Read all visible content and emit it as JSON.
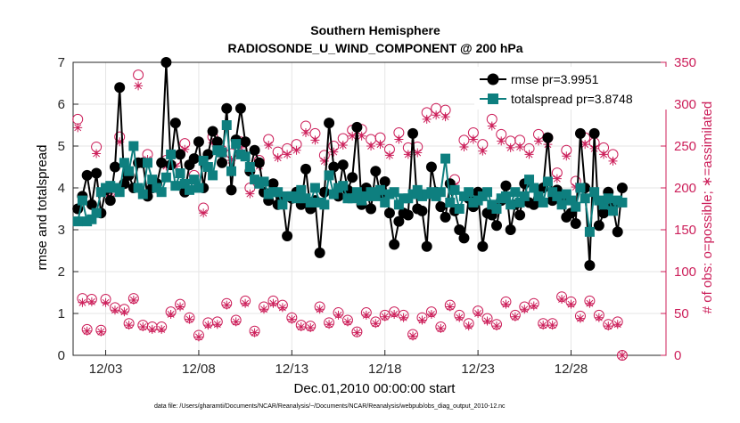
{
  "colors": {
    "rmse": "#000000",
    "totalspread": "#0e7f7f",
    "counts": "#cc1f5a",
    "axis": "#262626",
    "grid": "#e6e6e6"
  },
  "chart_data": {
    "type": "line",
    "title": "Southern Hemisphere",
    "subtitle": "RADIOSONDE_U_WIND_COMPONENT @ 200 hPa",
    "xlabel": "Dec.01,2010 00:00:00 start",
    "ylabel_left": "rmse and totalspread",
    "ylabel_right": "# of obs: o=possible; ∗=assimilated",
    "footnote": "data file: /Users/gharamti/Documents/NCAR/Reanalysis/~/Documents/NCAR/Reanalysis/webpub/obs_diag_output_2010-12.nc",
    "x_ticks": [
      {
        "day": 3,
        "label": "12/03"
      },
      {
        "day": 8,
        "label": "12/08"
      },
      {
        "day": 13,
        "label": "12/13"
      },
      {
        "day": 18,
        "label": "12/18"
      },
      {
        "day": 23,
        "label": "12/23"
      },
      {
        "day": 28,
        "label": "12/28"
      }
    ],
    "xlim": [
      1.25,
      33.1
    ],
    "ylim_left": [
      0,
      7
    ],
    "ylim_right": [
      0,
      350
    ],
    "y_left_ticks": [
      "0",
      "1",
      "2",
      "3",
      "4",
      "5",
      "6",
      "7"
    ],
    "y_right_ticks": [
      "0",
      "50",
      "100",
      "150",
      "200",
      "250",
      "300",
      "350"
    ],
    "legend_position": "top-right",
    "x_start": 1.5,
    "x_step": 0.25,
    "series": [
      {
        "name": "rmse",
        "legend_label": "rmse pr=3.9951",
        "marker": "circle",
        "values": [
          3.5,
          3.8,
          4.3,
          3.6,
          4.35,
          3.4,
          3.95,
          3.7,
          4.5,
          6.4,
          4.1,
          4.3,
          4.0,
          4.6,
          4.6,
          3.8,
          4.0,
          4.1,
          4.6,
          7.0,
          4.55,
          5.55,
          4.8,
          3.9,
          4.55,
          4.7,
          5.1,
          4.0,
          4.8,
          5.35,
          5.1,
          4.6,
          5.9,
          3.95,
          5.15,
          5.9,
          5.1,
          4.4,
          4.9,
          4.6,
          3.9,
          3.7,
          4.1,
          3.6,
          3.75,
          2.85,
          3.75,
          3.9,
          3.6,
          4.45,
          3.5,
          3.7,
          2.45,
          3.9,
          5.55,
          4.5,
          3.8,
          4.55,
          3.95,
          4.25,
          5.45,
          3.6,
          4.0,
          3.5,
          4.4,
          3.85,
          4.15,
          3.4,
          2.65,
          3.2,
          3.4,
          3.35,
          5.3,
          3.5,
          3.45,
          2.6,
          4.5,
          3.9,
          3.55,
          3.3,
          4.1,
          3.45,
          3.0,
          2.8,
          3.75,
          3.55,
          3.9,
          2.6,
          3.4,
          3.35,
          3.1,
          3.7,
          4.05,
          3.0,
          3.6,
          3.35,
          4.1,
          3.65,
          3.6,
          3.75,
          4.0,
          5.2,
          3.7,
          3.95,
          3.7,
          3.3,
          3.4,
          3.15,
          5.3,
          4.0,
          2.15,
          5.3,
          3.1,
          3.4,
          3.9,
          3.55,
          2.95,
          4.0
        ]
      },
      {
        "name": "totalspread",
        "legend_label": "totalspread pr=3.8748",
        "marker": "square",
        "values": [
          3.2,
          3.7,
          3.2,
          3.25,
          3.4,
          3.9,
          4.0,
          4.05,
          4.0,
          3.9,
          4.6,
          4.4,
          5.0,
          4.0,
          3.85,
          4.6,
          4.2,
          4.0,
          3.9,
          4.25,
          4.8,
          4.05,
          4.35,
          4.1,
          3.95,
          4.2,
          4.0,
          4.65,
          4.5,
          4.3,
          4.9,
          4.85,
          5.5,
          4.4,
          5.05,
          4.8,
          4.75,
          4.5,
          4.2,
          4.1,
          4.15,
          3.85,
          3.9,
          3.9,
          3.6,
          3.8,
          3.8,
          3.75,
          3.95,
          3.75,
          3.65,
          4.0,
          3.65,
          3.6,
          4.3,
          3.85,
          4.0,
          4.05,
          3.75,
          3.75,
          3.9,
          3.7,
          3.8,
          3.9,
          3.8,
          3.95,
          3.65,
          3.85,
          3.9,
          3.6,
          3.75,
          3.75,
          3.85,
          3.95,
          3.8,
          3.85,
          3.9,
          3.8,
          3.9,
          4.7,
          3.65,
          3.95,
          3.5,
          3.8,
          3.9,
          3.65,
          3.7,
          3.8,
          3.9,
          3.6,
          3.5,
          3.75,
          3.8,
          3.6,
          3.9,
          3.65,
          3.8,
          4.2,
          4.0,
          3.8,
          3.65,
          4.15,
          3.9,
          3.8,
          3.6,
          3.85,
          3.7,
          3.55,
          4.0,
          3.75,
          2.95,
          3.9,
          3.7,
          3.6,
          3.75,
          3.45,
          3.7,
          3.65
        ]
      },
      {
        "name": "obs_possible",
        "axis": "right",
        "marker": "open-circle",
        "values": [
          282,
          68,
          31,
          67,
          249,
          30,
          67,
          195,
          57,
          261,
          55,
          38,
          68,
          335,
          36,
          240,
          34,
          204,
          34,
          233,
          52,
          233,
          61,
          253,
          45,
          215,
          24,
          176,
          39,
          261,
          40,
          245,
          62,
          241,
          42,
          255,
          65,
          200,
          29,
          233,
          58,
          258,
          65,
          243,
          60,
          247,
          45,
          252,
          36,
          274,
          35,
          265,
          58,
          239,
          39,
          250,
          51,
          259,
          42,
          269,
          28,
          270,
          51,
          258,
          40,
          260,
          48,
          246,
          52,
          266,
          48,
          248,
          25,
          249,
          45,
          290,
          52,
          295,
          34,
          293,
          60,
          210,
          48,
          257,
          38,
          266,
          53,
          252,
          44,
          282,
          37,
          264,
          64,
          256,
          48,
          257,
          58,
          247,
          62,
          264,
          38,
          260,
          38,
          218,
          70,
          245,
          64,
          208,
          47,
          260,
          65,
          254,
          48,
          248,
          37,
          240,
          40,
          0
        ]
      },
      {
        "name": "obs_assimilated",
        "axis": "right",
        "marker": "asterisk",
        "values": [
          272,
          63,
          29,
          64,
          241,
          28,
          63,
          190,
          54,
          255,
          52,
          36,
          66,
          322,
          34,
          234,
          31,
          198,
          31,
          226,
          49,
          226,
          58,
          246,
          43,
          208,
          22,
          170,
          36,
          254,
          37,
          237,
          60,
          233,
          40,
          248,
          62,
          193,
          27,
          226,
          55,
          251,
          62,
          236,
          57,
          240,
          43,
          245,
          34,
          266,
          33,
          257,
          55,
          232,
          37,
          243,
          48,
          251,
          40,
          262,
          27,
          262,
          48,
          250,
          38,
          252,
          46,
          239,
          49,
          258,
          45,
          240,
          23,
          242,
          42,
          282,
          49,
          287,
          32,
          285,
          58,
          203,
          45,
          249,
          35,
          258,
          50,
          244,
          41,
          274,
          35,
          256,
          61,
          248,
          46,
          249,
          55,
          240,
          59,
          256,
          36,
          252,
          36,
          211,
          67,
          238,
          61,
          201,
          44,
          252,
          62,
          247,
          45,
          240,
          35,
          232,
          37,
          0
        ]
      }
    ]
  }
}
